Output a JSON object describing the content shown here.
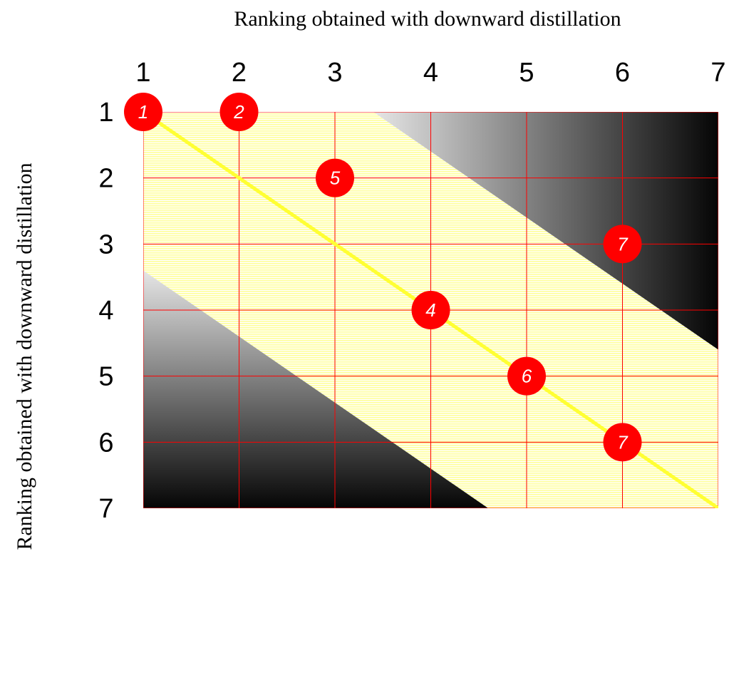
{
  "chart_data": {
    "type": "scatter",
    "title": "",
    "xlabel": "Ranking obtained with downward distillation",
    "ylabel": "Ranking obtained with downward distillation",
    "x_ticks": [
      "1",
      "2",
      "3",
      "4",
      "5",
      "6",
      "7"
    ],
    "y_ticks": [
      "1",
      "2",
      "3",
      "4",
      "5",
      "6",
      "7"
    ],
    "xlim": [
      1,
      7
    ],
    "ylim": [
      1,
      7
    ],
    "y_axis_inverted": true,
    "x_axis_position": "top",
    "grid": true,
    "grid_color": "#ff0000",
    "marker_color": "#ff0000",
    "band_color": "#ffff99",
    "diagonal_color": "#ffff33",
    "band_half_width": 2.4,
    "points": [
      {
        "label": "1",
        "x": 1,
        "y": 1
      },
      {
        "label": "2",
        "x": 2,
        "y": 1
      },
      {
        "label": "5",
        "x": 3,
        "y": 2
      },
      {
        "label": "7",
        "x": 6,
        "y": 3
      },
      {
        "label": "4",
        "x": 4,
        "y": 4
      },
      {
        "label": "6",
        "x": 5,
        "y": 5
      },
      {
        "label": "7",
        "x": 6,
        "y": 6
      }
    ]
  }
}
